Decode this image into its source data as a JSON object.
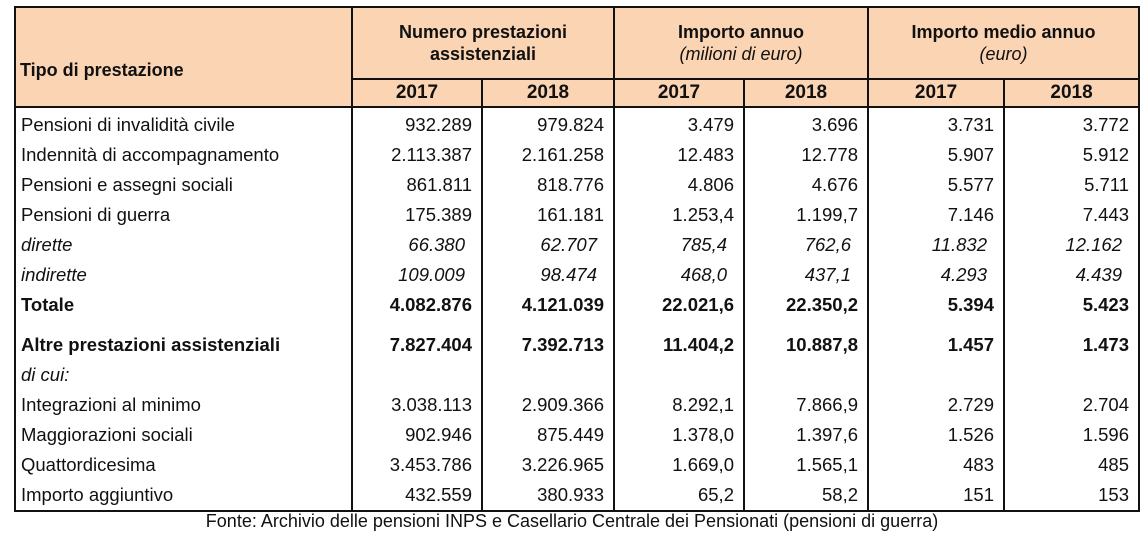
{
  "table": {
    "row_header": "Tipo di prestazione",
    "groups": [
      {
        "title": "Numero prestazioni assistenziali",
        "subtitle": ""
      },
      {
        "title": "Importo annuo",
        "subtitle": "(milioni di euro)"
      },
      {
        "title": "Importo medio annuo",
        "subtitle": "(euro)"
      }
    ],
    "years": [
      "2017",
      "2018",
      "2017",
      "2018",
      "2017",
      "2018"
    ],
    "rows": [
      {
        "label": "Pensioni di invalidità civile",
        "values": [
          "932.289",
          "979.824",
          "3.479",
          "3.696",
          "3.731",
          "3.772"
        ]
      },
      {
        "label": "Indennità di accompagnamento",
        "values": [
          "2.113.387",
          "2.161.258",
          "12.483",
          "12.778",
          "5.907",
          "5.912"
        ]
      },
      {
        "label": "Pensioni e assegni sociali",
        "values": [
          "861.811",
          "818.776",
          "4.806",
          "4.676",
          "5.577",
          "5.711"
        ]
      },
      {
        "label": "Pensioni di guerra",
        "values": [
          "175.389",
          "161.181",
          "1.253,4",
          "1.199,7",
          "7.146",
          "7.443"
        ]
      },
      {
        "label": "dirette",
        "values": [
          "66.380",
          "62.707",
          "785,4",
          "762,6",
          "11.832",
          "12.162"
        ]
      },
      {
        "label": "indirette",
        "values": [
          "109.009",
          "98.474",
          "468,0",
          "437,1",
          "4.293",
          "4.439"
        ]
      },
      {
        "label": "Totale",
        "values": [
          "4.082.876",
          "4.121.039",
          "22.021,6",
          "22.350,2",
          "5.394",
          "5.423"
        ]
      },
      {
        "label": "Altre prestazioni assistenziali",
        "values": [
          "7.827.404",
          "7.392.713",
          "11.404,2",
          "10.887,8",
          "1.457",
          "1.473"
        ]
      },
      {
        "label": "di cui:",
        "values": [
          "",
          "",
          "",
          "",
          "",
          ""
        ]
      },
      {
        "label": "Integrazioni al minimo",
        "values": [
          "3.038.113",
          "2.909.366",
          "8.292,1",
          "7.866,9",
          "2.729",
          "2.704"
        ]
      },
      {
        "label": "Maggiorazioni sociali",
        "values": [
          "902.946",
          "875.449",
          "1.378,0",
          "1.397,6",
          "1.526",
          "1.596"
        ]
      },
      {
        "label": "Quattordicesima",
        "values": [
          "3.453.786",
          "3.226.965",
          "1.669,0",
          "1.565,1",
          "483",
          "485"
        ]
      },
      {
        "label": "Importo aggiuntivo",
        "values": [
          "432.559",
          "380.933",
          "65,2",
          "58,2",
          "151",
          "153"
        ]
      }
    ]
  },
  "source": "Fonte: Archivio delle pensioni INPS e Casellario Centrale dei Pensionati (pensioni di guerra)",
  "colors": {
    "header_bg": "#fbd4b4",
    "border": "#111111"
  }
}
